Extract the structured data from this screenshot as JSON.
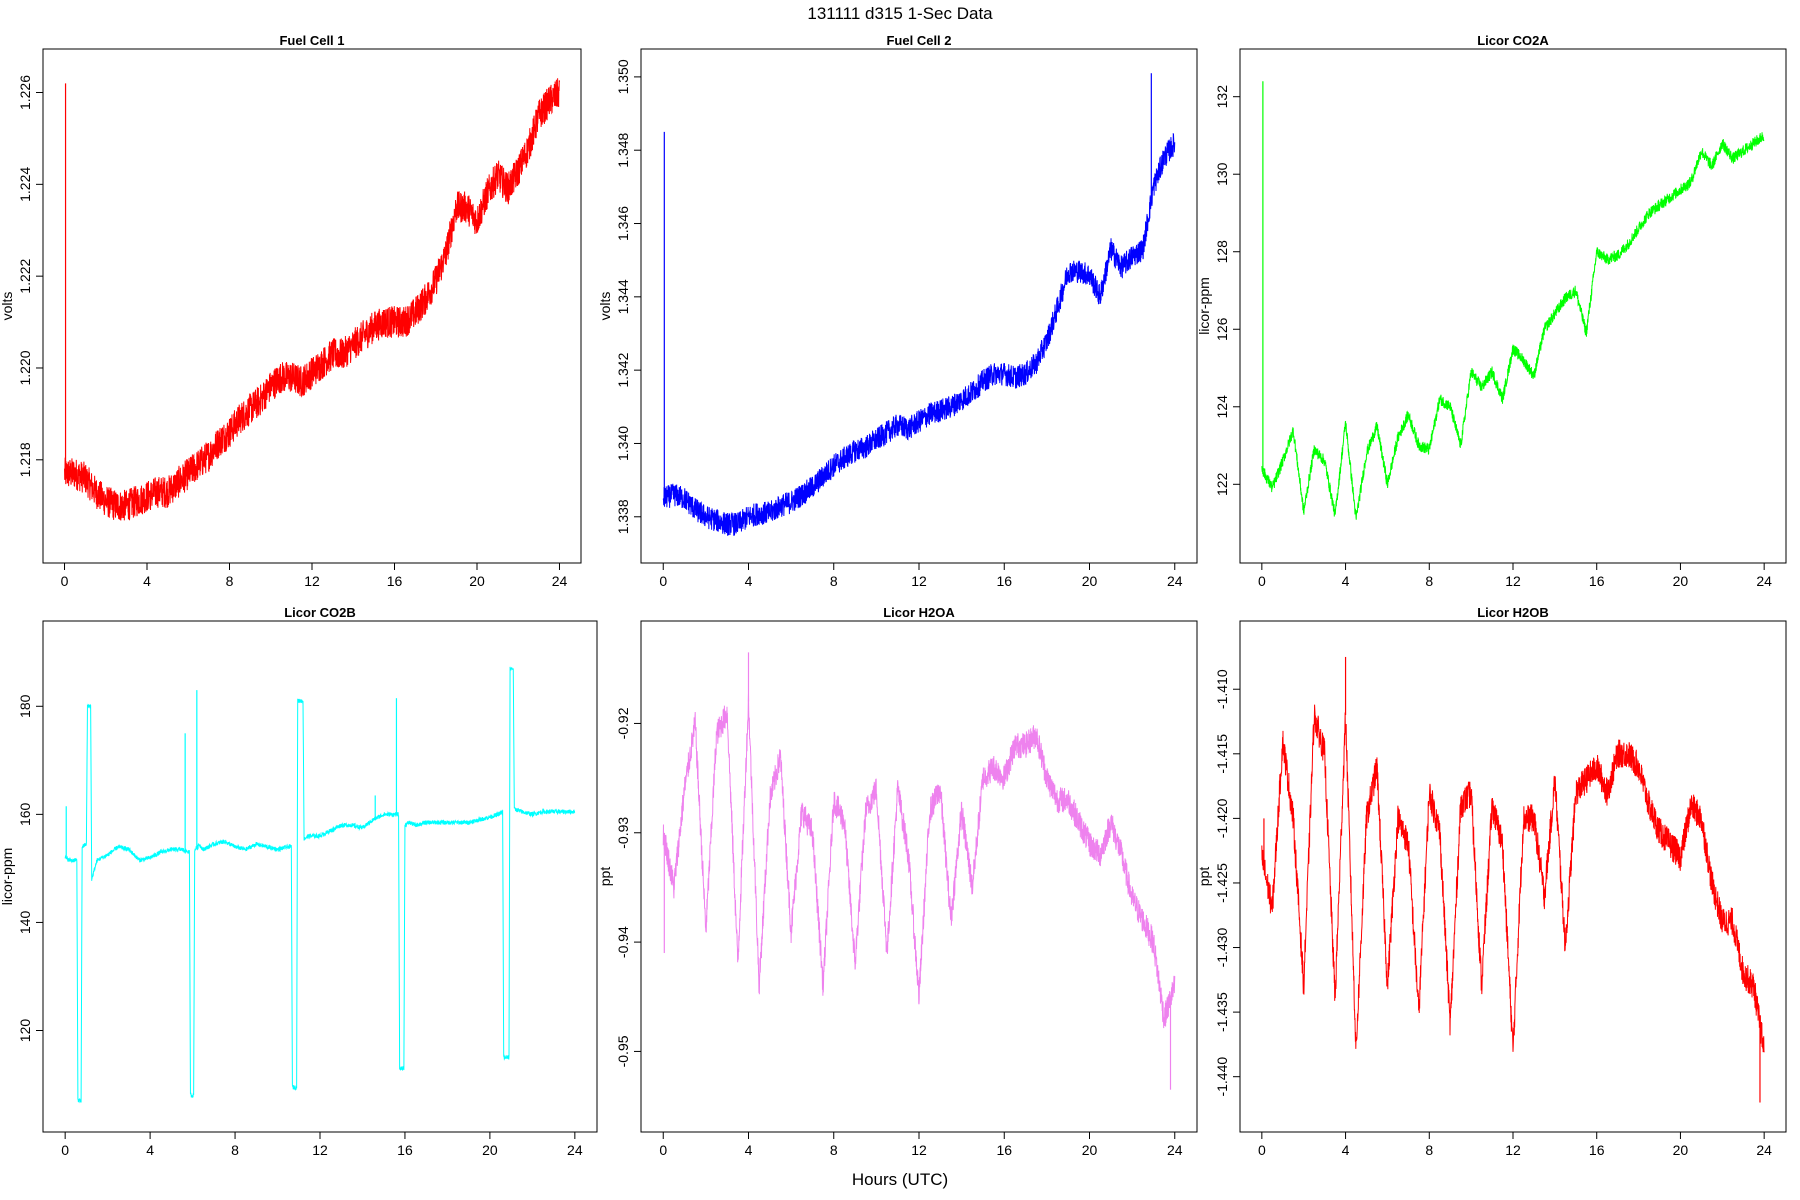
{
  "figure": {
    "title": "131111   d315   1-Sec Data",
    "xlabel": "Hours (UTC)"
  },
  "chart_data": [
    {
      "type": "line",
      "title": "Fuel Cell 1",
      "ylabel": "volts",
      "color": "#ff0000",
      "xlim": [
        0,
        24
      ],
      "xticks": [
        "0",
        "4",
        "8",
        "12",
        "16",
        "20",
        "24"
      ],
      "ylim": [
        1.2162,
        1.2265
      ],
      "yticks": [
        "1.218",
        "1.220",
        "1.222",
        "1.224",
        "1.226"
      ],
      "noise": 0.00035,
      "series": [
        {
          "x": [
            0,
            0.5,
            1,
            1.5,
            2,
            2.5,
            3,
            3.5,
            4,
            4.5,
            5,
            5.5,
            6,
            6.5,
            7,
            7.5,
            8,
            8.5,
            9,
            9.5,
            10,
            10.5,
            11,
            11.5,
            12,
            12.5,
            13,
            13.5,
            14,
            14.5,
            15,
            15.5,
            16,
            16.5,
            17,
            17.5,
            18,
            18.5,
            19,
            19.5,
            20,
            20.5,
            21,
            21.5,
            22,
            22.5,
            23,
            23.5,
            24
          ],
          "y": [
            1.2177,
            1.2177,
            1.2176,
            1.2173,
            1.2171,
            1.217,
            1.217,
            1.2171,
            1.2172,
            1.2173,
            1.2173,
            1.2175,
            1.2177,
            1.2179,
            1.2181,
            1.2184,
            1.2186,
            1.2189,
            1.2191,
            1.2193,
            1.2196,
            1.2198,
            1.2198,
            1.2197,
            1.2199,
            1.2201,
            1.2203,
            1.2203,
            1.2205,
            1.2207,
            1.2209,
            1.221,
            1.221,
            1.221,
            1.2212,
            1.2215,
            1.2219,
            1.2225,
            1.2235,
            1.2235,
            1.2232,
            1.2238,
            1.2242,
            1.2239,
            1.2243,
            1.2248,
            1.2255,
            1.2258,
            1.226
          ]
        }
      ],
      "spikes": [
        {
          "x": 0.05,
          "y": 1.2262
        }
      ]
    },
    {
      "type": "line",
      "title": "Fuel Cell 2",
      "ylabel": "volts",
      "color": "#0000ff",
      "xlim": [
        0,
        24
      ],
      "xticks": [
        "0",
        "4",
        "8",
        "12",
        "16",
        "20",
        "24"
      ],
      "ylim": [
        1.3373,
        1.3502
      ],
      "yticks": [
        "1.338",
        "1.340",
        "1.342",
        "1.344",
        "1.346",
        "1.348",
        "1.350"
      ],
      "noise": 0.00032,
      "series": [
        {
          "x": [
            0,
            0.5,
            1,
            1.5,
            2,
            2.5,
            3,
            3.5,
            4,
            4.5,
            5,
            5.5,
            6,
            6.5,
            7,
            7.5,
            8,
            8.5,
            9,
            9.5,
            10,
            10.5,
            11,
            11.5,
            12,
            12.5,
            13,
            13.5,
            14,
            14.5,
            15,
            15.5,
            16,
            16.5,
            17,
            17.5,
            18,
            18.5,
            19,
            19.5,
            20,
            20.5,
            21,
            21.5,
            22,
            22.5,
            23,
            23.5,
            24
          ],
          "y": [
            1.3385,
            1.3386,
            1.3385,
            1.3382,
            1.338,
            1.3379,
            1.3378,
            1.3378,
            1.338,
            1.3381,
            1.3381,
            1.3383,
            1.3384,
            1.3386,
            1.3388,
            1.3391,
            1.3394,
            1.3396,
            1.3398,
            1.3399,
            1.3401,
            1.3403,
            1.3405,
            1.3404,
            1.3406,
            1.3408,
            1.3409,
            1.341,
            1.3412,
            1.3414,
            1.3417,
            1.3419,
            1.3419,
            1.3418,
            1.3419,
            1.3422,
            1.3428,
            1.3437,
            1.3447,
            1.3447,
            1.3446,
            1.344,
            1.3453,
            1.3448,
            1.3451,
            1.3453,
            1.347,
            1.3478,
            1.3482
          ]
        }
      ],
      "spikes": [
        {
          "x": 0.05,
          "y": 1.3485
        },
        {
          "x": 22.9,
          "y": 1.3501
        }
      ]
    },
    {
      "type": "line",
      "title": "Licor CO2A",
      "ylabel": "licor-ppm",
      "color": "#00ff00",
      "xlim": [
        0,
        24
      ],
      "xticks": [
        "0",
        "4",
        "8",
        "12",
        "16",
        "20",
        "24"
      ],
      "ylim": [
        120.5,
        132.7
      ],
      "yticks": [
        "122",
        "124",
        "126",
        "128",
        "130",
        "132"
      ],
      "noise": 0.15,
      "series": [
        {
          "x": [
            0,
            0.5,
            1,
            1.5,
            2,
            2.5,
            3,
            3.5,
            4,
            4.5,
            5,
            5.5,
            6,
            6.5,
            7,
            7.5,
            8,
            8.5,
            9,
            9.5,
            10,
            10.5,
            11,
            11.5,
            12,
            12.5,
            13,
            13.5,
            14,
            14.5,
            15,
            15.5,
            16,
            16.5,
            17,
            17.5,
            18,
            18.5,
            19,
            19.5,
            20,
            20.5,
            21,
            21.5,
            22,
            22.5,
            23,
            23.5,
            24
          ],
          "y": [
            122.4,
            121.9,
            122.6,
            123.4,
            121.3,
            122.9,
            122.6,
            121.2,
            123.6,
            121.1,
            122.8,
            123.5,
            122.0,
            123.2,
            123.8,
            123.0,
            122.9,
            124.2,
            124.0,
            123.0,
            124.9,
            124.5,
            124.9,
            124.2,
            125.5,
            125.2,
            124.8,
            126.0,
            126.4,
            126.8,
            127.0,
            125.9,
            128.0,
            127.8,
            127.9,
            128.2,
            128.6,
            129.0,
            129.2,
            129.4,
            129.6,
            129.8,
            130.6,
            130.2,
            130.8,
            130.4,
            130.6,
            130.8,
            131.0
          ]
        }
      ],
      "spikes": [
        {
          "x": 0.05,
          "y": 132.4
        }
      ]
    },
    {
      "type": "line",
      "title": "Licor CO2B",
      "ylabel": "licor-ppm",
      "color": "#00ffff",
      "xlim": [
        0,
        24
      ],
      "xticks": [
        "0",
        "4",
        "8",
        "12",
        "16",
        "20",
        "24"
      ],
      "ylim": [
        105,
        192
      ],
      "yticks": [
        "120",
        "140",
        "160",
        "180"
      ],
      "noise": 0.4,
      "series": [
        {
          "x": [
            0,
            0.2,
            0.55,
            0.6,
            0.75,
            0.8,
            1.0,
            1.05,
            1.2,
            1.25,
            1.5,
            2,
            2.5,
            3,
            3.5,
            4,
            4.5,
            5,
            5.5,
            5.85,
            5.9,
            6.05,
            6.1,
            6.25,
            6.3,
            6.5,
            7,
            7.5,
            8,
            8.5,
            9,
            9.5,
            10,
            10.5,
            10.65,
            10.7,
            10.9,
            10.95,
            11.2,
            11.25,
            11.5,
            12,
            12.5,
            13,
            13.5,
            14,
            14.5,
            15,
            15.5,
            15.7,
            15.75,
            15.95,
            16.0,
            16.2,
            16.5,
            17,
            17.5,
            18,
            18.5,
            19,
            19.5,
            20,
            20.4,
            20.6,
            20.65,
            20.9,
            20.95,
            21.1,
            21.15,
            21.5,
            22,
            22.5,
            23,
            23.5,
            24
          ],
          "y": [
            152,
            151.5,
            151.5,
            107,
            107,
            154,
            154.5,
            180,
            180,
            148,
            151.5,
            152.5,
            154,
            153.5,
            151.5,
            152,
            153,
            153.5,
            153.5,
            153,
            108,
            108,
            153.5,
            154,
            154.5,
            153.5,
            154.5,
            155,
            154,
            153.5,
            154.5,
            154,
            153.5,
            154,
            154,
            109.5,
            109.5,
            181,
            181,
            155.5,
            156,
            156,
            157,
            158,
            158,
            157.5,
            159,
            160,
            160,
            160,
            113,
            113,
            158,
            158.5,
            158,
            158.5,
            158.5,
            158.5,
            158.5,
            158.5,
            159,
            159.5,
            160,
            160.5,
            115,
            115,
            187,
            187,
            161,
            160.5,
            160,
            160.5,
            160.5,
            160.5,
            160.5
          ]
        }
      ],
      "spikes": [
        {
          "x": 0.05,
          "y": 161.5
        },
        {
          "x": 5.65,
          "y": 175
        },
        {
          "x": 6.2,
          "y": 183
        },
        {
          "x": 15.6,
          "y": 181.5
        },
        {
          "x": 14.6,
          "y": 163.5
        }
      ]
    },
    {
      "type": "line",
      "title": "Licor H2OA",
      "ylabel": "ppt",
      "color": "#ee82ee",
      "xlim": [
        0,
        24
      ],
      "xticks": [
        "0",
        "4",
        "8",
        "12",
        "16",
        "20",
        "24"
      ],
      "ylim": [
        -0.9555,
        -0.9125
      ],
      "yticks": [
        "-0.95",
        "-0.94",
        "-0.93",
        "-0.92"
      ],
      "noise": 0.0012,
      "series": [
        {
          "x": [
            0,
            0.5,
            1,
            1.5,
            2,
            2.5,
            3,
            3.5,
            4,
            4.5,
            5,
            5.5,
            6,
            6.5,
            7,
            7.5,
            8,
            8.5,
            9,
            9.5,
            10,
            10.5,
            11,
            11.5,
            12,
            12.5,
            13,
            13.5,
            14,
            14.5,
            15,
            15.5,
            16,
            16.5,
            17,
            17.5,
            18,
            18.5,
            19,
            19.5,
            20,
            20.5,
            21,
            21.5,
            22,
            22.5,
            23,
            23.5,
            24
          ],
          "y": [
            -0.93,
            -0.935,
            -0.926,
            -0.92,
            -0.939,
            -0.921,
            -0.919,
            -0.942,
            -0.918,
            -0.944,
            -0.927,
            -0.923,
            -0.939,
            -0.928,
            -0.93,
            -0.944,
            -0.927,
            -0.929,
            -0.942,
            -0.928,
            -0.926,
            -0.941,
            -0.926,
            -0.932,
            -0.945,
            -0.928,
            -0.926,
            -0.938,
            -0.928,
            -0.935,
            -0.925,
            -0.924,
            -0.925,
            -0.922,
            -0.922,
            -0.921,
            -0.925,
            -0.927,
            -0.927,
            -0.929,
            -0.931,
            -0.932,
            -0.929,
            -0.932,
            -0.936,
            -0.938,
            -0.94,
            -0.947,
            -0.944
          ]
        }
      ],
      "spikes": [
        {
          "x": 0.05,
          "y": -0.941
        },
        {
          "x": 4.0,
          "y": -0.9135
        },
        {
          "x": 23.8,
          "y": -0.9535
        }
      ]
    },
    {
      "type": "line",
      "title": "Licor H2OB",
      "ylabel": "ppt",
      "color": "#ff0000",
      "xlim": [
        0,
        24
      ],
      "xticks": [
        "0",
        "4",
        "8",
        "12",
        "16",
        "20",
        "24"
      ],
      "ylim": [
        -1.4427,
        -1.4063
      ],
      "yticks": [
        "-1.440",
        "-1.435",
        "-1.430",
        "-1.425",
        "-1.420",
        "-1.415",
        "-1.410"
      ],
      "noise": 0.0011,
      "series": [
        {
          "x": [
            0,
            0.5,
            1,
            1.5,
            2,
            2.5,
            3,
            3.5,
            4,
            4.5,
            5,
            5.5,
            6,
            6.5,
            7,
            7.5,
            8,
            8.5,
            9,
            9.5,
            10,
            10.5,
            11,
            11.5,
            12,
            12.5,
            13,
            13.5,
            14,
            14.5,
            15,
            15.5,
            16,
            16.5,
            17,
            17.5,
            18,
            18.5,
            19,
            19.5,
            20,
            20.5,
            21,
            21.5,
            22,
            22.5,
            23,
            23.5,
            24
          ],
          "y": [
            -1.423,
            -1.427,
            -1.414,
            -1.42,
            -1.433,
            -1.412,
            -1.415,
            -1.434,
            -1.412,
            -1.438,
            -1.42,
            -1.416,
            -1.433,
            -1.42,
            -1.422,
            -1.435,
            -1.418,
            -1.421,
            -1.436,
            -1.419,
            -1.418,
            -1.433,
            -1.419,
            -1.422,
            -1.438,
            -1.42,
            -1.42,
            -1.426,
            -1.417,
            -1.43,
            -1.418,
            -1.417,
            -1.416,
            -1.418,
            -1.415,
            -1.415,
            -1.416,
            -1.419,
            -1.421,
            -1.422,
            -1.423,
            -1.419,
            -1.42,
            -1.425,
            -1.428,
            -1.428,
            -1.432,
            -1.433,
            -1.438
          ]
        }
      ],
      "spikes": [
        {
          "x": 0.1,
          "y": -1.42
        },
        {
          "x": 4.0,
          "y": -1.4075
        },
        {
          "x": 23.8,
          "y": -1.442
        }
      ]
    }
  ]
}
